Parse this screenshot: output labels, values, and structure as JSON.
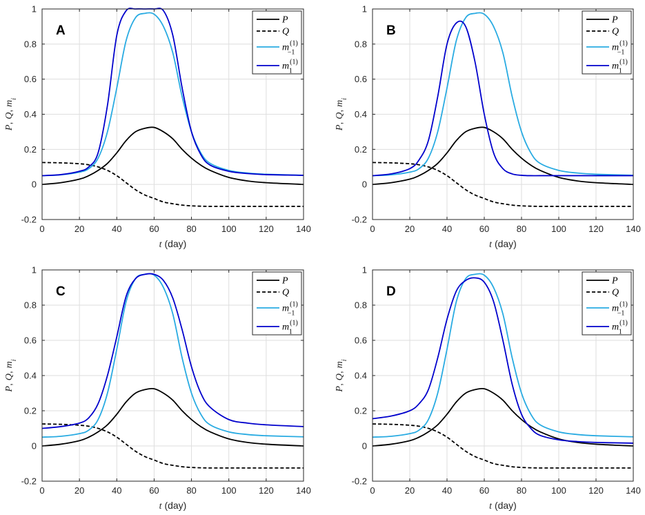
{
  "chart_data": [
    {
      "type": "line",
      "panel": "A",
      "xlabel_var": "t",
      "xlabel_unit": "(day)",
      "ylabel": [
        "P",
        ", ",
        "Q",
        ", ",
        "m",
        "i"
      ],
      "xlim": [
        0,
        140
      ],
      "ylim": [
        -0.2,
        1
      ],
      "xticks": [
        "0",
        "20",
        "40",
        "60",
        "80",
        "100",
        "120",
        "140"
      ],
      "yticks": [
        "-0.2",
        "0",
        "0.2",
        "0.4",
        "0.6",
        "0.8",
        "1"
      ],
      "x": [
        0,
        10,
        20,
        25,
        30,
        35,
        40,
        45,
        50,
        55,
        60,
        65,
        70,
        75,
        80,
        85,
        90,
        100,
        110,
        120,
        140
      ],
      "series": [
        {
          "name": "P",
          "color": "#000000",
          "dash": "solid",
          "values": [
            0.0,
            0.01,
            0.03,
            0.05,
            0.08,
            0.12,
            0.18,
            0.25,
            0.3,
            0.32,
            0.325,
            0.3,
            0.26,
            0.2,
            0.15,
            0.11,
            0.08,
            0.04,
            0.02,
            0.01,
            0.0
          ]
        },
        {
          "name": "Q",
          "color": "#000000",
          "dash": "dashed",
          "values": [
            0.125,
            0.123,
            0.118,
            0.112,
            0.1,
            0.08,
            0.05,
            0.01,
            -0.03,
            -0.06,
            -0.08,
            -0.1,
            -0.11,
            -0.118,
            -0.122,
            -0.124,
            -0.125,
            -0.125,
            -0.125,
            -0.125,
            -0.125
          ]
        },
        {
          "name": "m_{-1}^{(1)}",
          "color": "#29abe2",
          "dash": "solid",
          "values": [
            0.05,
            0.055,
            0.07,
            0.09,
            0.15,
            0.3,
            0.55,
            0.82,
            0.95,
            0.975,
            0.97,
            0.9,
            0.75,
            0.5,
            0.3,
            0.18,
            0.12,
            0.08,
            0.065,
            0.058,
            0.052
          ]
        },
        {
          "name": "m_1^{(1)}",
          "color": "#0000cc",
          "dash": "solid",
          "values": [
            0.05,
            0.056,
            0.075,
            0.1,
            0.18,
            0.45,
            0.85,
            0.99,
            1.0,
            1.0,
            1.0,
            0.99,
            0.85,
            0.55,
            0.3,
            0.17,
            0.11,
            0.075,
            0.062,
            0.056,
            0.052
          ]
        }
      ]
    },
    {
      "type": "line",
      "panel": "B",
      "xlabel_var": "t",
      "xlabel_unit": "(day)",
      "ylabel": [
        "P",
        ", ",
        "Q",
        ", ",
        "m",
        "i"
      ],
      "xlim": [
        0,
        140
      ],
      "ylim": [
        -0.2,
        1
      ],
      "xticks": [
        "0",
        "20",
        "40",
        "60",
        "80",
        "100",
        "120",
        "140"
      ],
      "yticks": [
        "-0.2",
        "0",
        "0.2",
        "0.4",
        "0.6",
        "0.8",
        "1"
      ],
      "x": [
        0,
        10,
        20,
        25,
        30,
        35,
        40,
        45,
        50,
        55,
        60,
        65,
        70,
        75,
        80,
        85,
        90,
        100,
        110,
        120,
        140
      ],
      "series": [
        {
          "name": "P",
          "color": "#000000",
          "dash": "solid",
          "values": [
            0.0,
            0.01,
            0.03,
            0.05,
            0.08,
            0.12,
            0.18,
            0.25,
            0.3,
            0.32,
            0.325,
            0.3,
            0.26,
            0.2,
            0.15,
            0.11,
            0.08,
            0.04,
            0.02,
            0.01,
            0.0
          ]
        },
        {
          "name": "Q",
          "color": "#000000",
          "dash": "dashed",
          "values": [
            0.125,
            0.123,
            0.118,
            0.112,
            0.1,
            0.08,
            0.05,
            0.01,
            -0.03,
            -0.06,
            -0.08,
            -0.1,
            -0.11,
            -0.118,
            -0.122,
            -0.124,
            -0.125,
            -0.125,
            -0.125,
            -0.125,
            -0.125
          ]
        },
        {
          "name": "m_{-1}^{(1)}",
          "color": "#29abe2",
          "dash": "solid",
          "values": [
            0.05,
            0.055,
            0.07,
            0.09,
            0.15,
            0.3,
            0.55,
            0.82,
            0.95,
            0.975,
            0.97,
            0.9,
            0.75,
            0.5,
            0.3,
            0.18,
            0.12,
            0.08,
            0.065,
            0.058,
            0.052
          ]
        },
        {
          "name": "m_1^{(1)}",
          "color": "#0000cc",
          "dash": "solid",
          "values": [
            0.05,
            0.06,
            0.09,
            0.14,
            0.25,
            0.5,
            0.8,
            0.92,
            0.9,
            0.7,
            0.4,
            0.18,
            0.09,
            0.06,
            0.052,
            0.05,
            0.05,
            0.05,
            0.05,
            0.05,
            0.05
          ]
        }
      ]
    },
    {
      "type": "line",
      "panel": "C",
      "xlabel_var": "t",
      "xlabel_unit": "(day)",
      "ylabel": [
        "P",
        ", ",
        "Q",
        ", ",
        "m",
        "i"
      ],
      "xlim": [
        0,
        140
      ],
      "ylim": [
        -0.2,
        1
      ],
      "xticks": [
        "0",
        "20",
        "40",
        "60",
        "80",
        "100",
        "120",
        "140"
      ],
      "yticks": [
        "-0.2",
        "0",
        "0.2",
        "0.4",
        "0.6",
        "0.8",
        "1"
      ],
      "x": [
        0,
        10,
        20,
        25,
        30,
        35,
        40,
        45,
        50,
        55,
        60,
        65,
        70,
        75,
        80,
        85,
        90,
        100,
        110,
        120,
        140
      ],
      "series": [
        {
          "name": "P",
          "color": "#000000",
          "dash": "solid",
          "values": [
            0.0,
            0.01,
            0.03,
            0.05,
            0.08,
            0.12,
            0.18,
            0.25,
            0.3,
            0.32,
            0.325,
            0.3,
            0.26,
            0.2,
            0.15,
            0.11,
            0.08,
            0.04,
            0.02,
            0.01,
            0.0
          ]
        },
        {
          "name": "Q",
          "color": "#000000",
          "dash": "dashed",
          "values": [
            0.125,
            0.123,
            0.118,
            0.112,
            0.1,
            0.08,
            0.05,
            0.01,
            -0.03,
            -0.06,
            -0.08,
            -0.1,
            -0.11,
            -0.118,
            -0.122,
            -0.124,
            -0.125,
            -0.125,
            -0.125,
            -0.125,
            -0.125
          ]
        },
        {
          "name": "m_{-1}^{(1)}",
          "color": "#29abe2",
          "dash": "solid",
          "values": [
            0.05,
            0.055,
            0.07,
            0.09,
            0.15,
            0.3,
            0.55,
            0.82,
            0.95,
            0.975,
            0.97,
            0.9,
            0.75,
            0.5,
            0.3,
            0.18,
            0.12,
            0.08,
            0.065,
            0.058,
            0.052
          ]
        },
        {
          "name": "m_1^{(1)}",
          "color": "#0000cc",
          "dash": "solid",
          "values": [
            0.1,
            0.11,
            0.13,
            0.16,
            0.24,
            0.4,
            0.62,
            0.85,
            0.95,
            0.975,
            0.975,
            0.94,
            0.84,
            0.66,
            0.45,
            0.3,
            0.22,
            0.15,
            0.13,
            0.12,
            0.11
          ]
        }
      ]
    },
    {
      "type": "line",
      "panel": "D",
      "xlabel_var": "t",
      "xlabel_unit": "(day)",
      "ylabel": [
        "P",
        ", ",
        "Q",
        ", ",
        "m",
        "i"
      ],
      "xlim": [
        0,
        140
      ],
      "ylim": [
        -0.2,
        1
      ],
      "xticks": [
        "0",
        "20",
        "40",
        "60",
        "80",
        "100",
        "120",
        "140"
      ],
      "yticks": [
        "-0.2",
        "0",
        "0.2",
        "0.4",
        "0.6",
        "0.8",
        "1"
      ],
      "x": [
        0,
        10,
        20,
        25,
        30,
        35,
        40,
        45,
        50,
        55,
        60,
        65,
        70,
        75,
        80,
        85,
        90,
        100,
        110,
        120,
        140
      ],
      "series": [
        {
          "name": "P",
          "color": "#000000",
          "dash": "solid",
          "values": [
            0.0,
            0.01,
            0.03,
            0.05,
            0.08,
            0.12,
            0.18,
            0.25,
            0.3,
            0.32,
            0.325,
            0.3,
            0.26,
            0.2,
            0.15,
            0.11,
            0.08,
            0.04,
            0.02,
            0.01,
            0.0
          ]
        },
        {
          "name": "Q",
          "color": "#000000",
          "dash": "dashed",
          "values": [
            0.125,
            0.123,
            0.118,
            0.112,
            0.1,
            0.08,
            0.05,
            0.01,
            -0.03,
            -0.06,
            -0.08,
            -0.1,
            -0.11,
            -0.118,
            -0.122,
            -0.124,
            -0.125,
            -0.125,
            -0.125,
            -0.125,
            -0.125
          ]
        },
        {
          "name": "m_{-1}^{(1)}",
          "color": "#29abe2",
          "dash": "solid",
          "values": [
            0.05,
            0.055,
            0.07,
            0.09,
            0.15,
            0.3,
            0.55,
            0.82,
            0.95,
            0.975,
            0.97,
            0.9,
            0.75,
            0.5,
            0.3,
            0.18,
            0.12,
            0.08,
            0.065,
            0.058,
            0.052
          ]
        },
        {
          "name": "m_1^{(1)}",
          "color": "#0000cc",
          "dash": "solid",
          "values": [
            0.155,
            0.17,
            0.2,
            0.24,
            0.32,
            0.5,
            0.72,
            0.88,
            0.94,
            0.955,
            0.93,
            0.82,
            0.6,
            0.35,
            0.18,
            0.1,
            0.06,
            0.035,
            0.025,
            0.02,
            0.016
          ]
        }
      ]
    }
  ]
}
